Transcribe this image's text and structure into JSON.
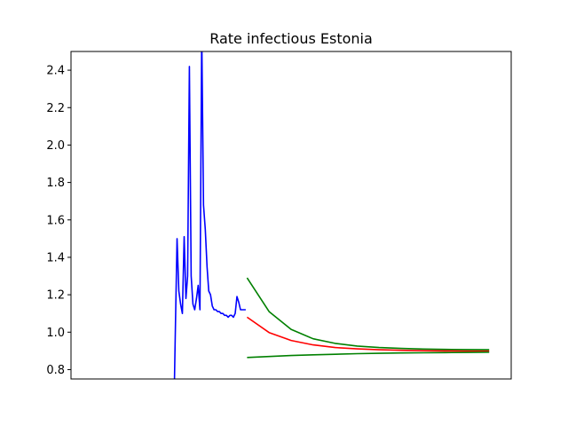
{
  "chart_data": {
    "type": "line",
    "title": "Rate infectious Estonia",
    "xlabel": "",
    "ylabel": "",
    "xlim": [
      0,
      100
    ],
    "ylim": [
      0.75,
      2.5
    ],
    "yticks": [
      0.8,
      1.0,
      1.2,
      1.4,
      1.6,
      1.8,
      2.0,
      2.2,
      2.4
    ],
    "ytick_labels": [
      "0.8",
      "1.0",
      "1.2",
      "1.4",
      "1.6",
      "1.8",
      "2.0",
      "2.2",
      "2.4"
    ],
    "xticks_visible": false,
    "grid": false,
    "legend": "none",
    "series": [
      {
        "color": "#0000ff",
        "x": [
          23.5,
          23.8,
          24.1,
          24.5,
          24.9,
          25.3,
          25.7,
          26.1,
          26.5,
          26.9,
          27.3,
          27.7,
          28.1,
          28.5,
          28.9,
          29.3,
          29.7,
          30.1,
          30.5,
          30.9,
          31.3,
          31.7,
          32.1,
          32.5,
          32.9,
          33.3,
          33.7,
          34.1,
          34.5,
          34.9,
          35.3,
          35.7,
          36.1,
          36.5,
          36.9,
          37.3,
          37.7,
          38.1,
          38.5,
          38.9,
          39.3,
          39.7
        ],
        "y": [
          0.75,
          1.12,
          1.5,
          1.22,
          1.15,
          1.1,
          1.51,
          1.18,
          1.3,
          2.42,
          1.3,
          1.15,
          1.12,
          1.18,
          1.25,
          1.12,
          2.6,
          1.68,
          1.55,
          1.35,
          1.22,
          1.2,
          1.14,
          1.12,
          1.12,
          1.11,
          1.11,
          1.1,
          1.1,
          1.09,
          1.09,
          1.08,
          1.09,
          1.09,
          1.08,
          1.1,
          1.19,
          1.16,
          1.12,
          1.12,
          1.12,
          1.12
        ]
      },
      {
        "color": "#ff0000",
        "x": [
          40,
          45,
          50,
          55,
          60,
          65,
          70,
          75,
          80,
          85,
          90,
          95
        ],
        "y": [
          1.08,
          0.998,
          0.956,
          0.932,
          0.918,
          0.911,
          0.906,
          0.903,
          0.901,
          0.9,
          0.899,
          0.899
        ]
      },
      {
        "color": "#008000",
        "x": [
          40,
          45,
          50,
          55,
          60,
          65,
          70,
          75,
          80,
          85,
          90,
          95
        ],
        "y": [
          1.29,
          1.11,
          1.015,
          0.965,
          0.94,
          0.926,
          0.918,
          0.913,
          0.91,
          0.908,
          0.907,
          0.906
        ]
      },
      {
        "color": "#008000",
        "x": [
          40,
          45,
          50,
          55,
          60,
          65,
          70,
          75,
          80,
          85,
          90,
          95
        ],
        "y": [
          0.865,
          0.87,
          0.875,
          0.879,
          0.882,
          0.885,
          0.887,
          0.889,
          0.89,
          0.891,
          0.892,
          0.893
        ]
      }
    ]
  }
}
